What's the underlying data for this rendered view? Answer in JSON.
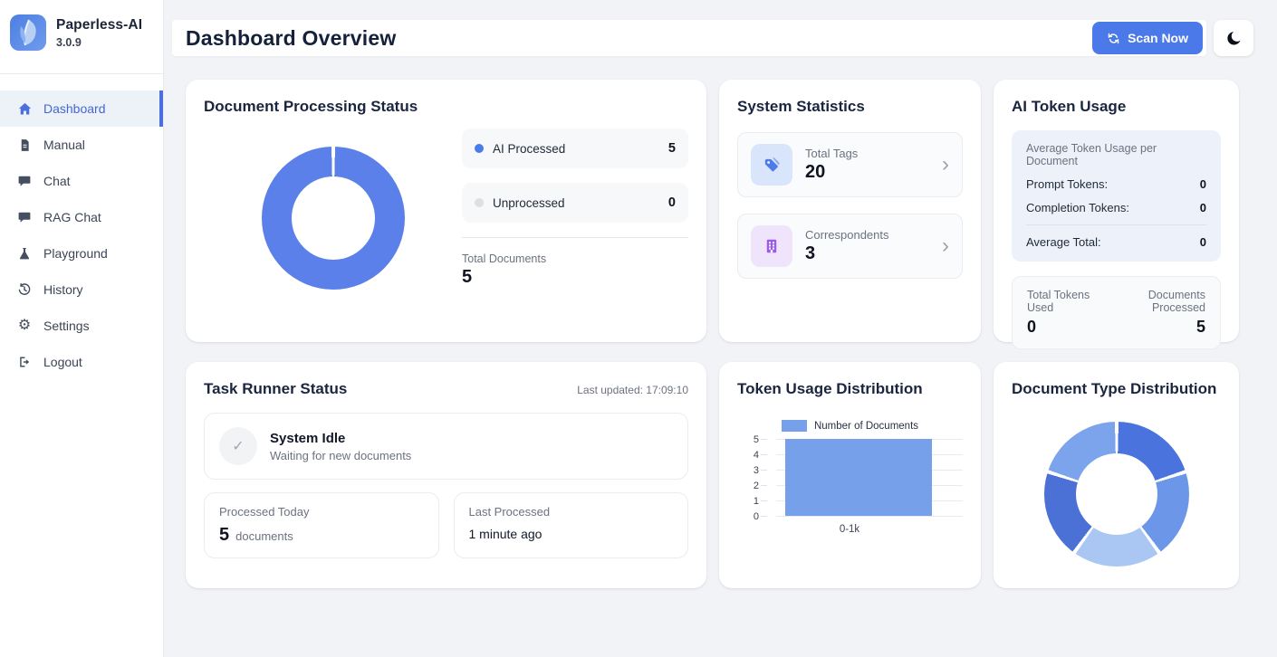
{
  "app": {
    "name": "Paperless-AI",
    "version": "3.0.9"
  },
  "sidebar": {
    "items": [
      {
        "label": "Dashboard",
        "icon": "home-icon",
        "active": true
      },
      {
        "label": "Manual",
        "icon": "document-icon",
        "active": false
      },
      {
        "label": "Chat",
        "icon": "chat-bubble-icon",
        "active": false
      },
      {
        "label": "RAG Chat",
        "icon": "chat-bubble-icon",
        "active": false
      },
      {
        "label": "Playground",
        "icon": "flask-icon",
        "active": false
      },
      {
        "label": "History",
        "icon": "history-icon",
        "active": false
      },
      {
        "label": "Settings",
        "icon": "gear-icon",
        "active": false
      },
      {
        "label": "Logout",
        "icon": "logout-icon",
        "active": false
      }
    ]
  },
  "header": {
    "title": "Dashboard Overview",
    "scan_label": "Scan Now"
  },
  "cards": {
    "doc_processing": {
      "title": "Document Processing Status",
      "legend": [
        {
          "label": "AI Processed",
          "value": "5",
          "color": "#4b7be8"
        },
        {
          "label": "Unprocessed",
          "value": "0",
          "color": "#dcdfe3"
        }
      ],
      "total_label": "Total Documents",
      "total_value": "5"
    },
    "system_stats": {
      "title": "System Statistics",
      "rows": [
        {
          "label": "Total Tags",
          "value": "20",
          "icon": "tag-icon",
          "icon_color": "#4d7ce9",
          "icon_bg": "#d9e5fb"
        },
        {
          "label": "Correspondents",
          "value": "3",
          "icon": "building-icon",
          "icon_color": "#9a5bed",
          "icon_bg": "#f0e4fc"
        }
      ]
    },
    "ai_token_usage": {
      "title": "AI Token Usage",
      "avg_heading": "Average Token Usage per Document",
      "rows": [
        {
          "label": "Prompt Tokens:",
          "value": "0"
        },
        {
          "label": "Completion Tokens:",
          "value": "0"
        }
      ],
      "avg_total": {
        "label": "Average Total:",
        "value": "0"
      },
      "totals": {
        "left_label": "Total Tokens Used",
        "left_value": "0",
        "right_label": "Documents Processed",
        "right_value": "5"
      }
    },
    "task_runner": {
      "title": "Task Runner Status",
      "last_updated": "Last updated: 17:09:10",
      "status_title": "System Idle",
      "status_subtitle": "Waiting for new documents",
      "processed_today": {
        "label": "Processed Today",
        "value": "5",
        "unit": "documents"
      },
      "last_processed": {
        "label": "Last Processed",
        "value": "1 minute ago"
      }
    },
    "token_distribution": {
      "title": "Token Usage Distribution"
    },
    "doc_type_distribution": {
      "title": "Document Type Distribution"
    }
  },
  "chart_data": [
    {
      "id": "document-processing-donut",
      "type": "pie",
      "subtype": "doughnut",
      "labels": [
        "AI Processed",
        "Unprocessed"
      ],
      "values": [
        5,
        0
      ],
      "colors": [
        "#5b80e9",
        "#dcdfe3"
      ],
      "total_label": "Total Documents",
      "total": 5,
      "legend_position": "right"
    },
    {
      "id": "token-usage-bar",
      "type": "bar",
      "title": "Token Usage Distribution",
      "legend": [
        "Number of Documents"
      ],
      "categories": [
        "0-1k"
      ],
      "values": [
        5
      ],
      "bar_color": "#76a0ea",
      "y_ticks": [
        5,
        4,
        3,
        2,
        1,
        0
      ],
      "ylim": [
        0,
        5
      ],
      "grid": true,
      "legend_position": "top"
    },
    {
      "id": "document-type-donut",
      "type": "pie",
      "subtype": "doughnut",
      "values": [
        1,
        1,
        1,
        1,
        1
      ],
      "colors": [
        "#4a73de",
        "#6c96e8",
        "#a9c7f2",
        "#4b70d6",
        "#7ba4ec"
      ]
    }
  ],
  "colors": {
    "accent_button": "#4b79e9",
    "active_nav": "#4467d2",
    "page_bg": "#f1f3f6",
    "active_nav_bar": "#4b6fe0"
  }
}
